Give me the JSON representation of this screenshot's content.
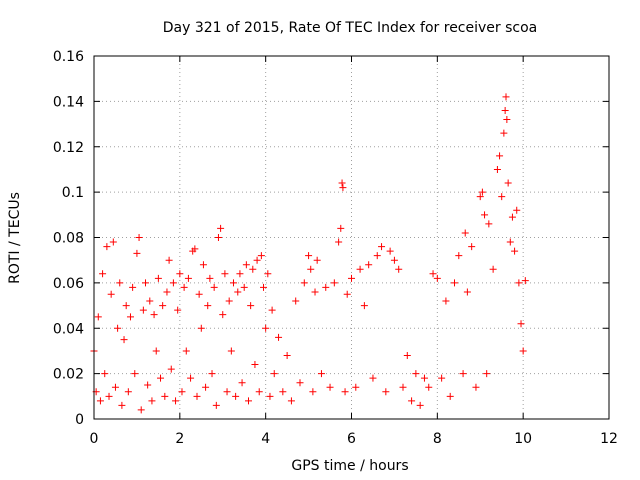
{
  "chart_data": {
    "type": "scatter",
    "title": "Day 321 of 2015, Rate Of TEC Index for receiver scoa",
    "xlabel": "GPS time / hours",
    "ylabel": "ROTI / TECUs",
    "xlim": [
      0,
      12
    ],
    "ylim": [
      0,
      0.16
    ],
    "x_ticks": [
      "0",
      "2",
      "4",
      "6",
      "8",
      "10",
      "12"
    ],
    "y_ticks": [
      "0",
      "0.02",
      "0.04",
      "0.06",
      "0.08",
      "0.1",
      "0.12",
      "0.14",
      "0.16"
    ],
    "grid": true,
    "marker": "+",
    "color": "#ff0000",
    "series": [
      {
        "values": [
          [
            0.0,
            0.03
          ],
          [
            0.05,
            0.012
          ],
          [
            0.1,
            0.045
          ],
          [
            0.15,
            0.008
          ],
          [
            0.2,
            0.064
          ],
          [
            0.25,
            0.02
          ],
          [
            0.3,
            0.076
          ],
          [
            0.35,
            0.01
          ],
          [
            0.4,
            0.055
          ],
          [
            0.45,
            0.078
          ],
          [
            0.5,
            0.014
          ],
          [
            0.55,
            0.04
          ],
          [
            0.6,
            0.06
          ],
          [
            0.65,
            0.006
          ],
          [
            0.7,
            0.035
          ],
          [
            0.75,
            0.05
          ],
          [
            0.8,
            0.012
          ],
          [
            0.85,
            0.045
          ],
          [
            0.9,
            0.058
          ],
          [
            0.95,
            0.02
          ],
          [
            1.0,
            0.073
          ],
          [
            1.05,
            0.08
          ],
          [
            1.1,
            0.004
          ],
          [
            1.15,
            0.048
          ],
          [
            1.2,
            0.06
          ],
          [
            1.25,
            0.015
          ],
          [
            1.3,
            0.052
          ],
          [
            1.35,
            0.008
          ],
          [
            1.4,
            0.046
          ],
          [
            1.45,
            0.03
          ],
          [
            1.5,
            0.062
          ],
          [
            1.55,
            0.018
          ],
          [
            1.6,
            0.05
          ],
          [
            1.65,
            0.01
          ],
          [
            1.7,
            0.056
          ],
          [
            1.75,
            0.07
          ],
          [
            1.8,
            0.022
          ],
          [
            1.85,
            0.06
          ],
          [
            1.9,
            0.008
          ],
          [
            1.95,
            0.048
          ],
          [
            2.0,
            0.064
          ],
          [
            2.05,
            0.012
          ],
          [
            2.1,
            0.058
          ],
          [
            2.15,
            0.03
          ],
          [
            2.2,
            0.062
          ],
          [
            2.25,
            0.018
          ],
          [
            2.3,
            0.074
          ],
          [
            2.35,
            0.075
          ],
          [
            2.4,
            0.01
          ],
          [
            2.45,
            0.055
          ],
          [
            2.5,
            0.04
          ],
          [
            2.55,
            0.068
          ],
          [
            2.6,
            0.014
          ],
          [
            2.65,
            0.05
          ],
          [
            2.7,
            0.062
          ],
          [
            2.75,
            0.02
          ],
          [
            2.8,
            0.058
          ],
          [
            2.85,
            0.006
          ],
          [
            2.9,
            0.08
          ],
          [
            2.95,
            0.084
          ],
          [
            3.0,
            0.046
          ],
          [
            3.05,
            0.064
          ],
          [
            3.1,
            0.012
          ],
          [
            3.15,
            0.052
          ],
          [
            3.2,
            0.03
          ],
          [
            3.25,
            0.06
          ],
          [
            3.3,
            0.01
          ],
          [
            3.35,
            0.056
          ],
          [
            3.4,
            0.064
          ],
          [
            3.45,
            0.016
          ],
          [
            3.5,
            0.058
          ],
          [
            3.55,
            0.068
          ],
          [
            3.6,
            0.008
          ],
          [
            3.65,
            0.05
          ],
          [
            3.7,
            0.066
          ],
          [
            3.75,
            0.024
          ],
          [
            3.8,
            0.07
          ],
          [
            3.85,
            0.012
          ],
          [
            3.9,
            0.072
          ],
          [
            3.95,
            0.058
          ],
          [
            4.0,
            0.04
          ],
          [
            4.05,
            0.064
          ],
          [
            4.1,
            0.01
          ],
          [
            4.15,
            0.048
          ],
          [
            4.2,
            0.02
          ],
          [
            4.3,
            0.036
          ],
          [
            4.4,
            0.012
          ],
          [
            4.5,
            0.028
          ],
          [
            4.6,
            0.008
          ],
          [
            4.7,
            0.052
          ],
          [
            4.8,
            0.016
          ],
          [
            4.9,
            0.06
          ],
          [
            5.0,
            0.072
          ],
          [
            5.05,
            0.066
          ],
          [
            5.1,
            0.012
          ],
          [
            5.15,
            0.056
          ],
          [
            5.2,
            0.07
          ],
          [
            5.3,
            0.02
          ],
          [
            5.4,
            0.058
          ],
          [
            5.5,
            0.014
          ],
          [
            5.6,
            0.06
          ],
          [
            5.7,
            0.078
          ],
          [
            5.75,
            0.084
          ],
          [
            5.78,
            0.104
          ],
          [
            5.8,
            0.102
          ],
          [
            5.85,
            0.012
          ],
          [
            5.9,
            0.055
          ],
          [
            6.0,
            0.062
          ],
          [
            6.1,
            0.014
          ],
          [
            6.2,
            0.066
          ],
          [
            6.3,
            0.05
          ],
          [
            6.4,
            0.068
          ],
          [
            6.5,
            0.018
          ],
          [
            6.6,
            0.072
          ],
          [
            6.7,
            0.076
          ],
          [
            6.8,
            0.012
          ],
          [
            6.9,
            0.074
          ],
          [
            7.0,
            0.07
          ],
          [
            7.1,
            0.066
          ],
          [
            7.2,
            0.014
          ],
          [
            7.3,
            0.028
          ],
          [
            7.4,
            0.008
          ],
          [
            7.5,
            0.02
          ],
          [
            7.6,
            0.006
          ],
          [
            7.7,
            0.018
          ],
          [
            7.8,
            0.014
          ],
          [
            7.9,
            0.064
          ],
          [
            8.0,
            0.062
          ],
          [
            8.1,
            0.018
          ],
          [
            8.2,
            0.052
          ],
          [
            8.3,
            0.01
          ],
          [
            8.4,
            0.06
          ],
          [
            8.5,
            0.072
          ],
          [
            8.6,
            0.02
          ],
          [
            8.65,
            0.082
          ],
          [
            8.7,
            0.056
          ],
          [
            8.8,
            0.076
          ],
          [
            8.9,
            0.014
          ],
          [
            9.0,
            0.098
          ],
          [
            9.05,
            0.1
          ],
          [
            9.1,
            0.09
          ],
          [
            9.15,
            0.02
          ],
          [
            9.2,
            0.086
          ],
          [
            9.3,
            0.066
          ],
          [
            9.4,
            0.11
          ],
          [
            9.45,
            0.116
          ],
          [
            9.5,
            0.098
          ],
          [
            9.55,
            0.126
          ],
          [
            9.58,
            0.136
          ],
          [
            9.6,
            0.142
          ],
          [
            9.62,
            0.132
          ],
          [
            9.65,
            0.104
          ],
          [
            9.7,
            0.078
          ],
          [
            9.75,
            0.089
          ],
          [
            9.8,
            0.074
          ],
          [
            9.85,
            0.092
          ],
          [
            9.9,
            0.06
          ],
          [
            9.95,
            0.042
          ],
          [
            10.0,
            0.03
          ],
          [
            10.05,
            0.061
          ]
        ]
      }
    ]
  }
}
